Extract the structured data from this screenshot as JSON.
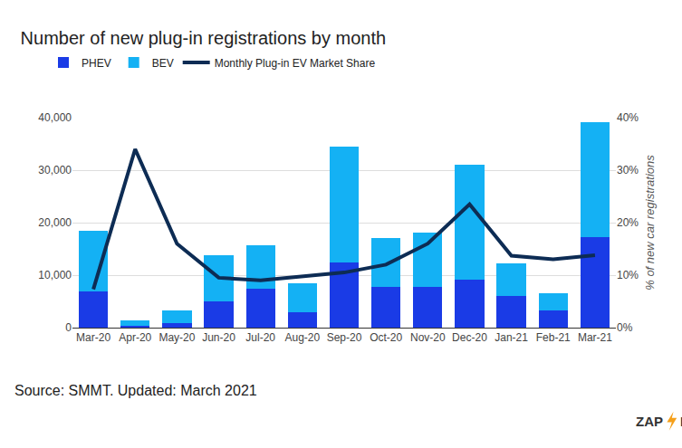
{
  "chart_data": {
    "type": "bar",
    "title": "Number of new plug-in registrations by month",
    "stacked": true,
    "grid": true,
    "legend": "top-left",
    "categories": [
      "Mar-20",
      "Apr-20",
      "May-20",
      "Jun-20",
      "Jul-20",
      "Aug-20",
      "Sep-20",
      "Oct-20",
      "Nov-20",
      "Dec-20",
      "Jan-21",
      "Feb-21",
      "Mar-21"
    ],
    "series": [
      {
        "name": "PHEV",
        "type": "bar",
        "color": "#1a3be6",
        "values": [
          6900,
          300,
          900,
          5000,
          7400,
          3000,
          12400,
          7800,
          7800,
          9200,
          6100,
          3200,
          17300
        ]
      },
      {
        "name": "BEV",
        "type": "bar",
        "color": "#14b1f4",
        "values": [
          11600,
          1100,
          2300,
          8800,
          8300,
          5500,
          22000,
          9300,
          10300,
          21800,
          6200,
          3400,
          21900
        ]
      },
      {
        "name": "Monthly Plug-in EV Market Share",
        "type": "line",
        "axis": "y2",
        "color": "#0d2c54",
        "values": [
          7.3,
          34,
          16,
          9.5,
          9,
          9.8,
          10.5,
          12,
          16,
          23.5,
          13.7,
          13,
          13.8
        ]
      }
    ],
    "ylim": [
      0,
      40000
    ],
    "yticks": [
      0,
      {
        "value": 10000,
        "label": "10,000"
      },
      {
        "value": 20000,
        "label": "20,000"
      },
      {
        "value": 30000,
        "label": "30,000"
      },
      {
        "value": 40000,
        "label": "40,000"
      }
    ],
    "y2lim": [
      0,
      40
    ],
    "y2ticks": [
      {
        "value": 0,
        "label": "0%"
      },
      {
        "value": 10,
        "label": "10%"
      },
      {
        "value": 20,
        "label": "20%"
      },
      {
        "value": 30,
        "label": "30%"
      },
      {
        "value": 40,
        "label": "40%"
      }
    ],
    "y2_label": "% of new car registrations",
    "source": "Source: SMMT. Updated: March 2021",
    "logo": [
      "ZAP",
      "MAP"
    ]
  }
}
